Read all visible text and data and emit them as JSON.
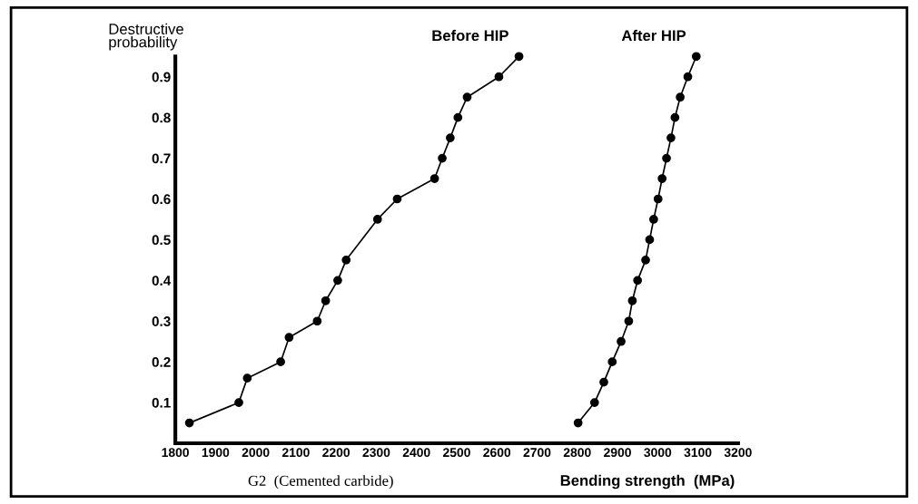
{
  "chart_data": {
    "type": "line",
    "ylabel": "Destructive\nprobability",
    "xlabel": "Bending strength  (MPa)",
    "annotations": [
      "G2  (Cemented carbide)"
    ],
    "xlim": [
      1800,
      3200
    ],
    "xticks": [
      1800,
      1900,
      2000,
      2100,
      2200,
      2300,
      2400,
      2500,
      2600,
      2700,
      2800,
      2900,
      3000,
      3100,
      3200
    ],
    "ylim": [
      0,
      0.95
    ],
    "yticks": [
      0.1,
      0.2,
      0.3,
      0.4,
      0.5,
      0.6,
      0.7,
      0.8,
      0.9
    ],
    "grid": false,
    "legend": false,
    "marker": "circle",
    "line_style": "solid",
    "series": [
      {
        "name": "Before HIP",
        "color": "#000000",
        "x": [
          1835,
          1958,
          1979,
          2062,
          2083,
          2153,
          2174,
          2204,
          2225,
          2303,
          2352,
          2445,
          2464,
          2484,
          2503,
          2526,
          2605,
          2655
        ],
        "values": [
          0.05,
          0.1,
          0.16,
          0.2,
          0.26,
          0.3,
          0.35,
          0.4,
          0.45,
          0.55,
          0.6,
          0.65,
          0.7,
          0.75,
          0.8,
          0.85,
          0.9,
          0.95
        ]
      },
      {
        "name": "After HIP",
        "color": "#000000",
        "x": [
          2802,
          2843,
          2866,
          2887,
          2909,
          2928,
          2937,
          2950,
          2970,
          2980,
          2990,
          3001,
          3011,
          3022,
          3033,
          3043,
          3056,
          3075,
          3096
        ],
        "values": [
          0.05,
          0.1,
          0.15,
          0.2,
          0.25,
          0.3,
          0.35,
          0.4,
          0.45,
          0.5,
          0.55,
          0.6,
          0.65,
          0.7,
          0.75,
          0.8,
          0.85,
          0.9,
          0.95
        ]
      }
    ]
  }
}
